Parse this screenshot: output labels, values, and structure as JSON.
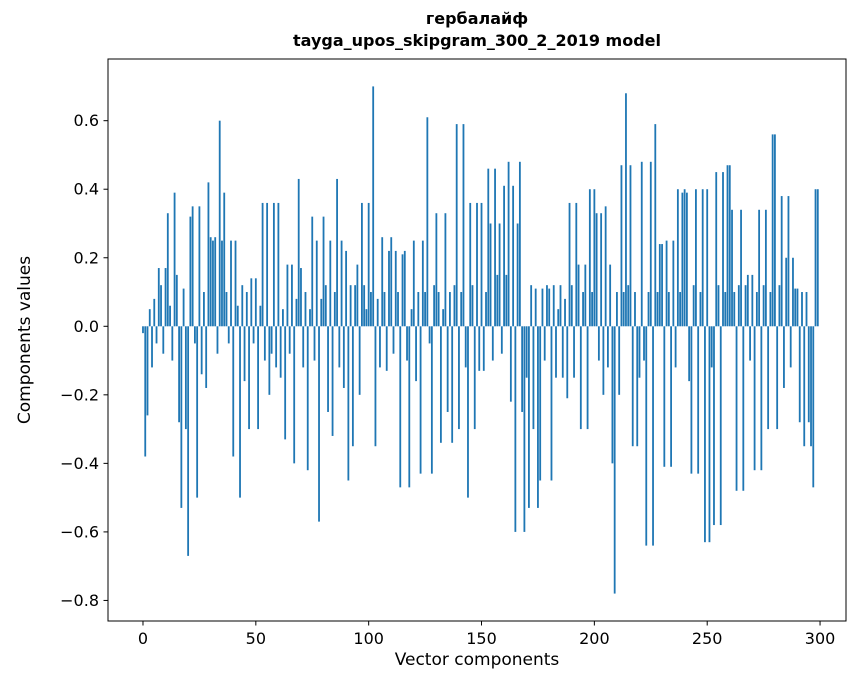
{
  "chart_data": {
    "type": "bar",
    "title_line1": "гербалайф",
    "title_line2": "tayga_upos_skipgram_300_2_2019 model",
    "xlabel": "Vector components",
    "ylabel": "Components values",
    "bar_color": "#1f77b4",
    "axis_color": "#000000",
    "xlim": [
      -15.5,
      311.5
    ],
    "ylim": [
      -0.86,
      0.78
    ],
    "xticks": [
      0,
      50,
      100,
      150,
      200,
      250,
      300
    ],
    "xtick_labels": [
      "0",
      "50",
      "100",
      "150",
      "200",
      "250",
      "300"
    ],
    "yticks": [
      -0.8,
      -0.6,
      -0.4,
      -0.2,
      0.0,
      0.2,
      0.4,
      0.6
    ],
    "ytick_labels": [
      "−0.8",
      "−0.6",
      "−0.4",
      "−0.2",
      "0.0",
      "0.2",
      "0.4",
      "0.6"
    ],
    "x_start": 0,
    "grid": false,
    "legend": null,
    "values": [
      -0.02,
      -0.38,
      -0.26,
      0.05,
      -0.12,
      0.08,
      -0.05,
      0.17,
      0.12,
      -0.08,
      0.17,
      0.33,
      0.06,
      -0.1,
      0.39,
      0.15,
      -0.28,
      -0.53,
      0.11,
      -0.3,
      -0.67,
      0.32,
      0.35,
      -0.05,
      -0.5,
      0.35,
      -0.14,
      0.1,
      -0.18,
      0.42,
      0.26,
      0.25,
      0.26,
      -0.08,
      0.6,
      0.25,
      0.39,
      0.1,
      -0.05,
      0.25,
      -0.38,
      0.25,
      0.06,
      -0.5,
      0.12,
      -0.16,
      0.1,
      -0.3,
      0.14,
      -0.05,
      0.14,
      -0.3,
      0.06,
      0.36,
      -0.1,
      0.36,
      -0.2,
      -0.08,
      0.36,
      -0.12,
      0.36,
      -0.15,
      0.05,
      -0.33,
      0.18,
      -0.08,
      0.18,
      -0.4,
      0.08,
      0.43,
      0.17,
      -0.12,
      0.1,
      -0.42,
      0.05,
      0.32,
      -0.1,
      0.25,
      -0.57,
      0.08,
      0.32,
      0.12,
      -0.25,
      0.25,
      -0.32,
      0.1,
      0.43,
      -0.12,
      0.25,
      -0.18,
      0.22,
      -0.45,
      0.12,
      -0.35,
      0.12,
      0.18,
      -0.2,
      0.36,
      0.12,
      0.05,
      0.36,
      0.1,
      0.7,
      -0.35,
      0.08,
      -0.12,
      0.26,
      0.1,
      -0.13,
      0.22,
      0.26,
      -0.08,
      0.22,
      0.1,
      -0.47,
      0.21,
      0.22,
      -0.1,
      -0.47,
      0.05,
      0.25,
      -0.16,
      0.1,
      -0.43,
      0.25,
      0.1,
      0.61,
      -0.05,
      -0.43,
      0.12,
      0.33,
      0.1,
      -0.34,
      0.05,
      0.33,
      -0.25,
      0.1,
      -0.34,
      0.12,
      0.59,
      -0.3,
      0.1,
      0.59,
      -0.12,
      -0.5,
      0.36,
      0.12,
      -0.3,
      0.36,
      -0.13,
      0.36,
      -0.13,
      0.1,
      0.46,
      0.3,
      -0.1,
      0.46,
      0.15,
      0.3,
      -0.08,
      0.41,
      0.15,
      0.48,
      -0.22,
      0.41,
      -0.6,
      0.3,
      0.48,
      -0.25,
      -0.6,
      -0.15,
      -0.53,
      0.12,
      -0.3,
      0.11,
      -0.53,
      -0.45,
      0.11,
      -0.1,
      0.12,
      0.11,
      -0.45,
      0.12,
      -0.15,
      0.05,
      0.12,
      -0.15,
      0.08,
      -0.21,
      0.36,
      0.12,
      -0.15,
      0.36,
      0.18,
      -0.3,
      0.1,
      0.18,
      -0.3,
      0.4,
      0.1,
      0.4,
      0.33,
      -0.1,
      0.33,
      -0.2,
      0.35,
      -0.12,
      0.18,
      -0.4,
      -0.78,
      0.1,
      -0.2,
      0.47,
      0.1,
      0.68,
      0.12,
      0.47,
      -0.35,
      0.1,
      -0.35,
      -0.15,
      0.48,
      -0.1,
      -0.64,
      0.1,
      0.48,
      -0.64,
      0.59,
      0.1,
      0.24,
      0.24,
      -0.41,
      0.25,
      0.1,
      -0.41,
      0.25,
      -0.12,
      0.4,
      0.1,
      0.39,
      0.4,
      0.39,
      -0.16,
      -0.43,
      0.12,
      0.4,
      -0.43,
      0.1,
      0.4,
      -0.63,
      0.4,
      -0.63,
      -0.12,
      -0.58,
      0.45,
      0.12,
      -0.58,
      0.45,
      0.1,
      0.47,
      0.47,
      0.34,
      0.1,
      -0.48,
      0.12,
      0.34,
      -0.48,
      0.12,
      0.15,
      -0.1,
      0.15,
      -0.42,
      0.1,
      0.34,
      -0.42,
      0.12,
      0.34,
      -0.3,
      0.1,
      0.56,
      0.56,
      -0.3,
      0.12,
      0.38,
      -0.18,
      0.2,
      0.38,
      -0.12,
      0.2,
      0.11,
      0.11,
      -0.28,
      0.1,
      -0.35,
      0.1,
      -0.28,
      -0.35,
      -0.47,
      0.4,
      0.4
    ]
  }
}
